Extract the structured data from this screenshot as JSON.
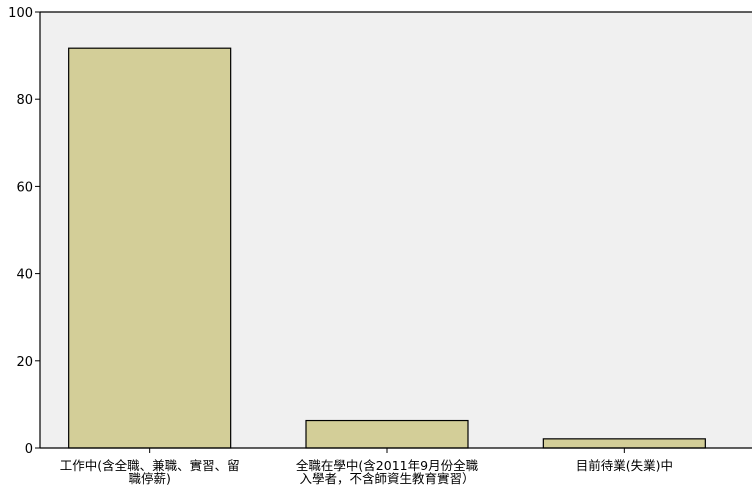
{
  "chart_data": {
    "type": "bar",
    "categories": [
      [
        "工作中(含全職、兼職、實習、留",
        "職停薪)"
      ],
      [
        "全職在學中(含2011年9月份全職",
        "入學者，不含師資生教育實習）"
      ],
      [
        "目前待業(失業)中"
      ]
    ],
    "values": [
      91.7,
      6.3,
      2.1
    ],
    "title": "",
    "xlabel": "",
    "ylabel": "",
    "ylim": [
      0,
      100
    ],
    "yticks": [
      0,
      20,
      40,
      60,
      80,
      100
    ],
    "grid": false,
    "colors": {
      "plot_background": "#f0f0f0",
      "bar_fill": "#d3ce98",
      "bar_stroke": "#000000",
      "axis": "#000000"
    }
  }
}
